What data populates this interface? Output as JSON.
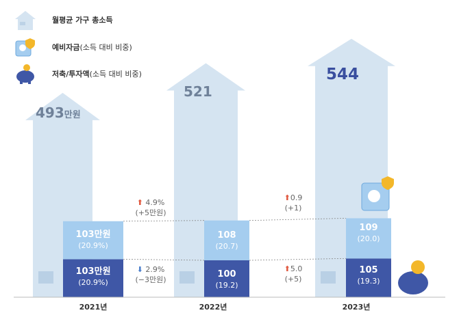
{
  "legend": [
    {
      "label": "월평균 가구 총소득",
      "icon": "house-icon"
    },
    {
      "label_bold": "예비자금",
      "label_rest": "(소득 대비 비중)",
      "icon": "safe-icon"
    },
    {
      "label_bold": "저축/투자액",
      "label_rest": "(소득 대비 비중)",
      "icon": "piggy-bank-icon"
    }
  ],
  "colors": {
    "house": "#d5e4f1",
    "reserve": "#a5cdef",
    "savings": "#3f57a6",
    "total_text": "#6f8199",
    "total_text_latest": "#3a4f9f",
    "up": "#e0573e",
    "down": "#4a7ecb"
  },
  "chart_data": {
    "type": "bar",
    "categories": [
      "2021년",
      "2022년",
      "2023년"
    ],
    "total_income": {
      "values": [
        493,
        521,
        544
      ],
      "labels": [
        "493",
        "521",
        "544"
      ],
      "unit": "만원"
    },
    "reserve_fund": {
      "values": [
        103,
        108,
        109
      ],
      "labels": [
        "103만원",
        "108",
        "109"
      ],
      "shares": [
        "(20.9%)",
        "(20.7)",
        "(20.0)"
      ]
    },
    "savings_investment": {
      "values": [
        103,
        100,
        105
      ],
      "labels": [
        "103만원",
        "100",
        "105"
      ],
      "shares": [
        "(20.9%)",
        "(19.2)",
        "(19.3)"
      ]
    },
    "changes": {
      "reserve": [
        {
          "dir": "up",
          "pct": "4.9%",
          "abs": "(+5만원)"
        },
        {
          "dir": "up",
          "pct": "0.9",
          "abs": "(+1)"
        }
      ],
      "savings": [
        {
          "dir": "down",
          "pct": "2.9%",
          "abs": "(−3만원)"
        },
        {
          "dir": "up",
          "pct": "5.0",
          "abs": "(+5)"
        }
      ]
    }
  }
}
